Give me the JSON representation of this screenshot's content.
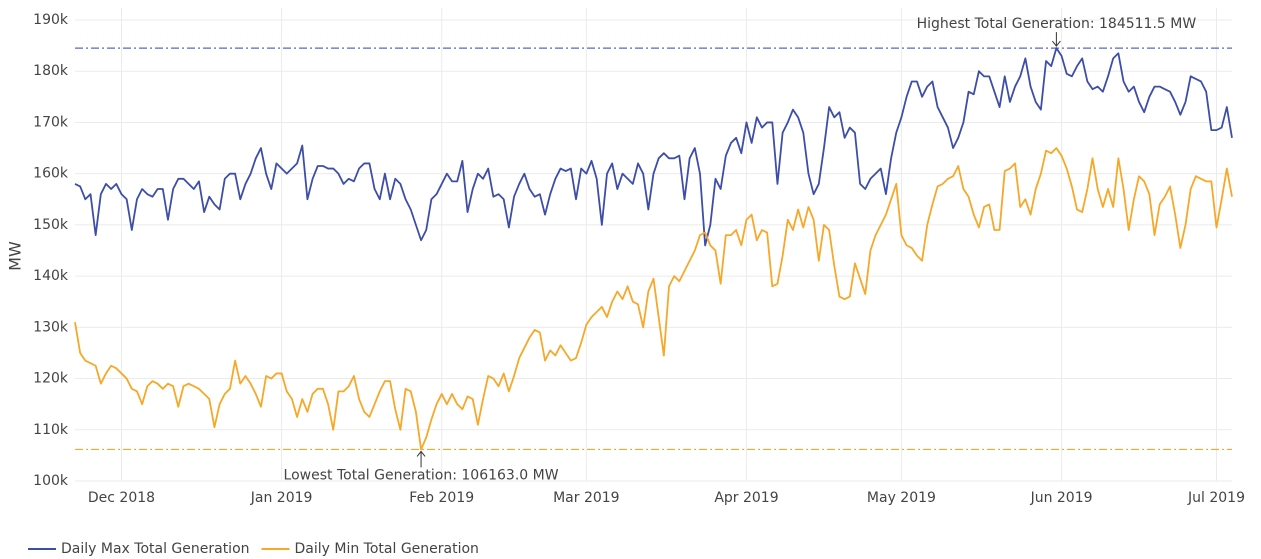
{
  "chart_data": {
    "type": "line",
    "ylabel": "MW",
    "categories": [
      null,
      null,
      null,
      null,
      null,
      null,
      null,
      null,
      null,
      null,
      null,
      null,
      null,
      null,
      null,
      null,
      null,
      null,
      null,
      null,
      null,
      null,
      null,
      null,
      null,
      null,
      null,
      null,
      null,
      null,
      null,
      null,
      null,
      null,
      null,
      null,
      null,
      null,
      null,
      null,
      null,
      null,
      null,
      null,
      null,
      null,
      null,
      null,
      null,
      null,
      null,
      null,
      null,
      null,
      null,
      null,
      null,
      null,
      null,
      null,
      null,
      null,
      null,
      null,
      null,
      null,
      null,
      null,
      null,
      null,
      null,
      null,
      null,
      null,
      null,
      null,
      null,
      null,
      null,
      null,
      null,
      null,
      null,
      null,
      null,
      null,
      null,
      null,
      null,
      null,
      null,
      null,
      null,
      null,
      null,
      null,
      null,
      null,
      null,
      null,
      null,
      null,
      null,
      null,
      null,
      null,
      null,
      null,
      null,
      null,
      null,
      null,
      null,
      null,
      null,
      null,
      null,
      null,
      null,
      null,
      null,
      null,
      null,
      null,
      null,
      null,
      null,
      null,
      null,
      null,
      null,
      null,
      null,
      null,
      null,
      null,
      null,
      null,
      null,
      null,
      null,
      null,
      null,
      null,
      null,
      null,
      null,
      null,
      null,
      null,
      null,
      null,
      null,
      null,
      null,
      null,
      null,
      null,
      null,
      null,
      null,
      null,
      null,
      null,
      null,
      null,
      null,
      null,
      null,
      null,
      null,
      null,
      null,
      null,
      null,
      null,
      null,
      null,
      null,
      null,
      null,
      null,
      null,
      null,
      null,
      null,
      null,
      null,
      null,
      null,
      null,
      null,
      null,
      null,
      null,
      null,
      null,
      null,
      null,
      null,
      null,
      null,
      null,
      null,
      null,
      null,
      null,
      null,
      null,
      null,
      null,
      null,
      null,
      null,
      null,
      null,
      null,
      null,
      null,
      null,
      null,
      null,
      null,
      null,
      null
    ],
    "xlim": [
      0,
      224
    ],
    "xticks": [
      {
        "value": 9,
        "label": "Dec 2018"
      },
      {
        "value": 40,
        "label": "Jan 2019"
      },
      {
        "value": 71,
        "label": "Feb 2019"
      },
      {
        "value": 99,
        "label": "Mar 2019"
      },
      {
        "value": 130,
        "label": "Apr 2019"
      },
      {
        "value": 160,
        "label": "May 2019"
      },
      {
        "value": 191,
        "label": "Jun 2019"
      },
      {
        "value": 221,
        "label": "Jul 2019"
      }
    ],
    "ylim": [
      100000,
      190000
    ],
    "yticks": [
      {
        "value": 100000,
        "label": "100k"
      },
      {
        "value": 110000,
        "label": "110k"
      },
      {
        "value": 120000,
        "label": "120k"
      },
      {
        "value": 130000,
        "label": "130k"
      },
      {
        "value": 140000,
        "label": "140k"
      },
      {
        "value": 150000,
        "label": "150k"
      },
      {
        "value": 160000,
        "label": "160k"
      },
      {
        "value": 170000,
        "label": "170k"
      },
      {
        "value": 180000,
        "label": "180k"
      },
      {
        "value": 190000,
        "label": "190k"
      }
    ],
    "grid": true,
    "legend": "bottom-left",
    "series": [
      {
        "name": "Daily Max Total Generation",
        "color": "#3d4ea8",
        "values": [
          158000,
          157500,
          155000,
          156000,
          148000,
          156000,
          158000,
          157000,
          158000,
          156000,
          155000,
          149000,
          155000,
          157000,
          156000,
          155500,
          157000,
          157000,
          151000,
          157000,
          159000,
          159000,
          158000,
          157000,
          158500,
          152500,
          155500,
          154000,
          153000,
          159000,
          160000,
          160000,
          155000,
          158000,
          160000,
          163000,
          165000,
          160000,
          157000,
          162000,
          161000,
          160000,
          161000,
          162000,
          165500,
          155000,
          159000,
          161500,
          161500,
          161000,
          161000,
          160000,
          158000,
          159000,
          158500,
          161000,
          162000,
          162000,
          157000,
          155000,
          160000,
          155000,
          159000,
          158000,
          155000,
          153000,
          150000,
          147000,
          149000,
          155000,
          156000,
          158000,
          160000,
          158500,
          158500,
          162500,
          152500,
          157000,
          160000,
          159000,
          161000,
          155500,
          156000,
          155000,
          149500,
          155500,
          158000,
          160000,
          157000,
          155500,
          156000,
          152000,
          156000,
          159000,
          161000,
          160500,
          161000,
          155000,
          161000,
          160000,
          162500,
          159000,
          150000,
          160000,
          162000,
          157000,
          160000,
          159000,
          158000,
          162000,
          160000,
          153000,
          160000,
          163000,
          164000,
          163000,
          163000,
          163500,
          155000,
          163000,
          165000,
          160000,
          146000,
          150000,
          159000,
          157000,
          163500,
          166000,
          167000,
          164000,
          170000,
          166000,
          171000,
          169000,
          170000,
          170000,
          158000,
          168000,
          170000,
          172500,
          171000,
          168000,
          160000,
          156000,
          158000,
          165000,
          173000,
          171000,
          172000,
          167000,
          169000,
          168000,
          158000,
          157000,
          159000,
          160000,
          161000,
          156000,
          163000,
          168000,
          171000,
          175000,
          178000,
          178000,
          175000,
          177000,
          178000,
          173000,
          171000,
          169000,
          165000,
          167000,
          170000,
          176000,
          175500,
          180000,
          179000,
          179000,
          176000,
          173000,
          179000,
          174000,
          177000,
          179000,
          182500,
          177000,
          174000,
          172500,
          182000,
          181000,
          184511.5,
          183000,
          179500,
          179000,
          181000,
          182500,
          178000,
          176500,
          177000,
          176000,
          179000,
          182500,
          183500,
          178000,
          176000,
          177000,
          174000,
          172000,
          175000,
          177000,
          177000,
          176500,
          176000,
          174000,
          171500,
          174000,
          179000,
          178500,
          178000,
          176000,
          168500,
          168500,
          169000,
          173000,
          167000
        ]
      },
      {
        "name": "Daily Min Total Generation",
        "color": "#f7a828",
        "values": [
          131000,
          125000,
          123500,
          123000,
          122500,
          119000,
          121000,
          122500,
          122000,
          121000,
          120000,
          118000,
          117500,
          115000,
          118500,
          119500,
          119000,
          118000,
          119000,
          118500,
          114500,
          118500,
          119000,
          118500,
          118000,
          117000,
          116000,
          110500,
          115000,
          117000,
          118000,
          123500,
          119000,
          120500,
          119000,
          117000,
          114500,
          120500,
          120000,
          121000,
          121000,
          117500,
          116000,
          112500,
          116000,
          113500,
          117000,
          118000,
          118000,
          115000,
          110000,
          117500,
          117500,
          118500,
          120500,
          116000,
          113500,
          112500,
          115000,
          117500,
          119500,
          119500,
          114000,
          110000,
          118000,
          117500,
          113500,
          106163,
          108500,
          112000,
          115000,
          117000,
          115000,
          117000,
          115000,
          114000,
          116500,
          116000,
          111000,
          116000,
          120500,
          120000,
          118500,
          121000,
          117500,
          120500,
          124000,
          126000,
          128000,
          129500,
          129000,
          123500,
          125500,
          124500,
          126500,
          125000,
          123500,
          124000,
          127000,
          130500,
          132000,
          133000,
          134000,
          132000,
          135000,
          137000,
          135500,
          138000,
          135000,
          134500,
          130000,
          137000,
          139500,
          132000,
          124500,
          138000,
          140000,
          139000,
          141000,
          143000,
          145000,
          148000,
          148500,
          146000,
          145000,
          138500,
          148000,
          148000,
          149000,
          146000,
          151000,
          152000,
          147000,
          149000,
          148500,
          138000,
          138500,
          144000,
          151000,
          149000,
          153000,
          149500,
          153500,
          151000,
          143000,
          150000,
          149000,
          142000,
          136000,
          135500,
          136000,
          142500,
          139500,
          136500,
          145000,
          148000,
          150000,
          152000,
          155000,
          158000,
          148000,
          146000,
          145500,
          144000,
          143000,
          150000,
          154000,
          157500,
          158000,
          159000,
          159500,
          161500,
          157000,
          155500,
          152000,
          149500,
          153500,
          154000,
          149000,
          149000,
          160500,
          161000,
          162000,
          153500,
          155000,
          152000,
          157000,
          160000,
          164500,
          164000,
          165000,
          163500,
          161000,
          157500,
          153000,
          152500,
          157000,
          163000,
          157000,
          153500,
          157000,
          153500,
          163000,
          157000,
          149000,
          155000,
          159500,
          158500,
          156000,
          148000,
          154000,
          155500,
          157500,
          152000,
          145500,
          150000,
          157000,
          159500,
          159000,
          158500,
          158500,
          149500,
          155000,
          161000,
          155500
        ]
      }
    ],
    "annotations": [
      {
        "text": "Highest Total Generation: 184511.5 MW",
        "value": 184511.5,
        "color": "#5566cc"
      },
      {
        "text": "Lowest Total Generation: 106163.0 MW",
        "value": 106163,
        "color": "#f7a828"
      }
    ]
  }
}
